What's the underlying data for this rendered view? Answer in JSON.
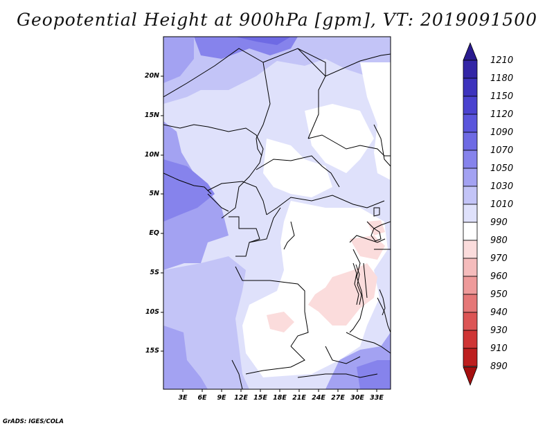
{
  "title": "Geopotential Height at 900hPa [gpm], VT: 2019091500",
  "footer": "GrADS: IGES/COLA",
  "map": {
    "lat_labels": [
      "20N",
      "15N",
      "10N",
      "5N",
      "EQ",
      "5S",
      "10S",
      "15S"
    ],
    "lon_labels": [
      "3E",
      "6E",
      "9E",
      "12E",
      "15E",
      "18E",
      "21E",
      "24E",
      "27E",
      "30E",
      "33E"
    ]
  },
  "colorbar": {
    "labels": [
      "1210",
      "1180",
      "1150",
      "1120",
      "1090",
      "1070",
      "1050",
      "1030",
      "1010",
      "990",
      "980",
      "970",
      "960",
      "950",
      "940",
      "930",
      "910",
      "890"
    ],
    "colors": [
      "#2a1b8f",
      "#3326a6",
      "#3d33bd",
      "#4a42cf",
      "#5a55dc",
      "#6e6ae4",
      "#8683ec",
      "#a3a2f2",
      "#c3c4f7",
      "#dfe1fb",
      "#ffffff",
      "#fbdcdc",
      "#f5bcbc",
      "#ee9a9a",
      "#e57777",
      "#dc5555",
      "#cf3535",
      "#bd1f1f",
      "#a50f0f"
    ]
  }
}
